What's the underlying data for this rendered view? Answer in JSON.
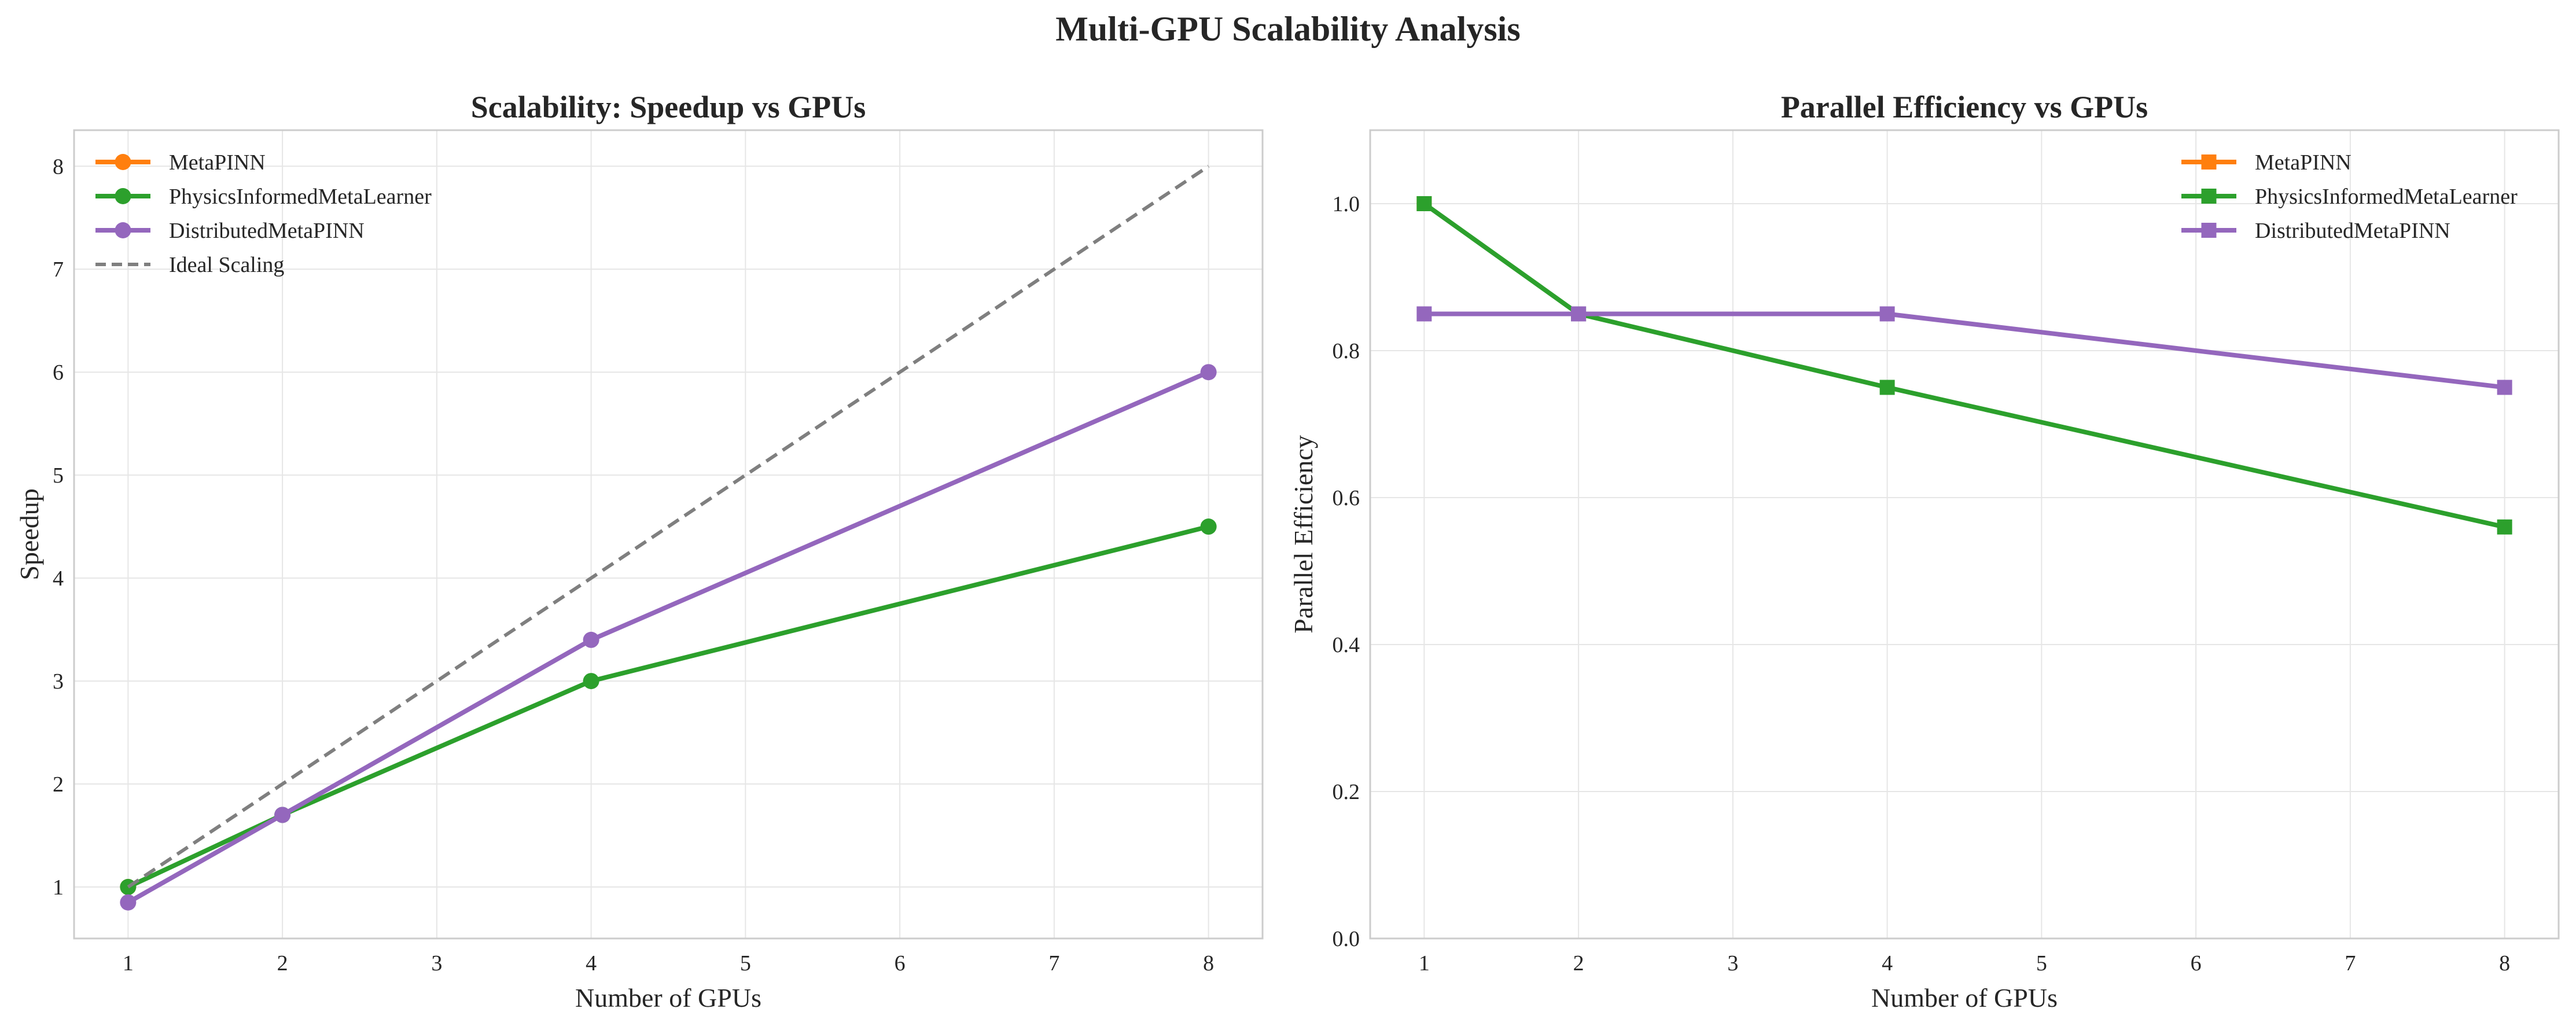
{
  "figure": {
    "title": "Multi-GPU Scalability Analysis"
  },
  "chart_data": [
    {
      "type": "line",
      "title": "Scalability: Speedup vs GPUs",
      "xlabel": "Number of GPUs",
      "ylabel": "Speedup",
      "xlim": [
        0.65,
        8.35
      ],
      "ylim": [
        0.5,
        8.35
      ],
      "xticks": [
        1,
        2,
        3,
        4,
        5,
        6,
        7,
        8
      ],
      "yticks": [
        1,
        2,
        3,
        4,
        5,
        6,
        7,
        8
      ],
      "grid": true,
      "legend": "top-left",
      "marker": "circle",
      "series": [
        {
          "name": "MetaPINN",
          "color": "#ff7f0e",
          "style": "solid",
          "x": [
            1
          ],
          "y": [
            1.0
          ]
        },
        {
          "name": "PhysicsInformedMetaLearner",
          "color": "#2ca02c",
          "style": "solid",
          "x": [
            1,
            2,
            4,
            8
          ],
          "y": [
            1.0,
            1.7,
            3.0,
            4.5
          ]
        },
        {
          "name": "DistributedMetaPINN",
          "color": "#9467bd",
          "style": "solid",
          "x": [
            1,
            2,
            4,
            8
          ],
          "y": [
            0.85,
            1.7,
            3.4,
            6.0
          ]
        },
        {
          "name": "Ideal Scaling",
          "color": "#7f7f7f",
          "style": "dashed",
          "x": [
            1,
            2,
            4,
            8
          ],
          "y": [
            1,
            2,
            4,
            8
          ]
        }
      ]
    },
    {
      "type": "line",
      "title": "Parallel Efficiency vs GPUs",
      "xlabel": "Number of GPUs",
      "ylabel": "Parallel Efficiency",
      "xlim": [
        0.65,
        8.35
      ],
      "ylim": [
        0.0,
        1.1
      ],
      "xticks": [
        1,
        2,
        3,
        4,
        5,
        6,
        7,
        8
      ],
      "yticks": [
        0.0,
        0.2,
        0.4,
        0.6,
        0.8,
        1.0
      ],
      "ytick_labels": [
        "0.0",
        "0.2",
        "0.4",
        "0.6",
        "0.8",
        "1.0"
      ],
      "grid": true,
      "legend": "top-right",
      "marker": "square",
      "series": [
        {
          "name": "MetaPINN",
          "color": "#ff7f0e",
          "style": "solid",
          "x": [
            1
          ],
          "y": [
            1.0
          ]
        },
        {
          "name": "PhysicsInformedMetaLearner",
          "color": "#2ca02c",
          "style": "solid",
          "x": [
            1,
            2,
            4,
            8
          ],
          "y": [
            1.0,
            0.85,
            0.75,
            0.56
          ]
        },
        {
          "name": "DistributedMetaPINN",
          "color": "#9467bd",
          "style": "solid",
          "x": [
            1,
            2,
            4,
            8
          ],
          "y": [
            0.85,
            0.85,
            0.85,
            0.75
          ]
        }
      ]
    }
  ]
}
